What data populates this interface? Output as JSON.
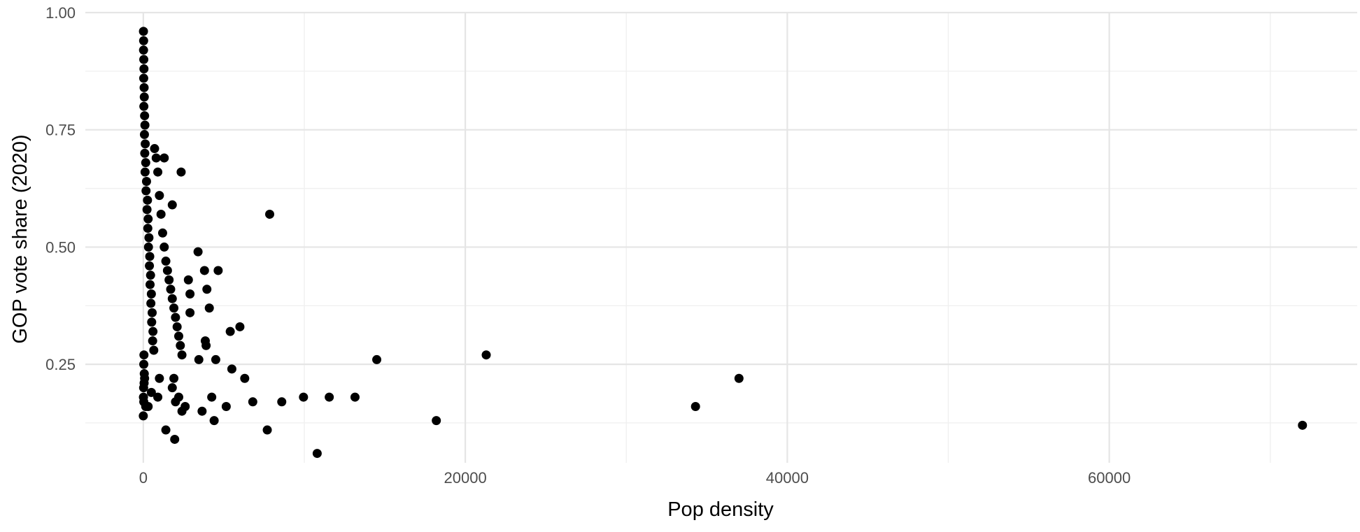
{
  "chart_data": {
    "type": "scatter",
    "title": "",
    "xlabel": "Pop density",
    "ylabel": "GOP vote share (2020)",
    "xlim": [
      -3600,
      75400
    ],
    "ylim": [
      0.04,
      1.0
    ],
    "x_ticks": [
      0,
      20000,
      40000,
      60000
    ],
    "x_tick_labels": [
      "0",
      "20000",
      "40000",
      "60000"
    ],
    "y_ticks": [
      0.25,
      0.5,
      0.75,
      1.0
    ],
    "y_tick_labels": [
      "0.25",
      "0.50",
      "0.75",
      "1.00"
    ],
    "grid": true,
    "legend": "none",
    "point_color": "#000000",
    "background": "#ffffff",
    "grid_color": "#e5e5e5",
    "points": [
      [
        10,
        0.96
      ],
      [
        20,
        0.94
      ],
      [
        15,
        0.92
      ],
      [
        30,
        0.9
      ],
      [
        40,
        0.88
      ],
      [
        25,
        0.86
      ],
      [
        50,
        0.84
      ],
      [
        60,
        0.82
      ],
      [
        35,
        0.8
      ],
      [
        80,
        0.78
      ],
      [
        100,
        0.76
      ],
      [
        70,
        0.74
      ],
      [
        120,
        0.72
      ],
      [
        90,
        0.7
      ],
      [
        150,
        0.68
      ],
      [
        110,
        0.66
      ],
      [
        200,
        0.64
      ],
      [
        170,
        0.62
      ],
      [
        260,
        0.6
      ],
      [
        230,
        0.58
      ],
      [
        300,
        0.56
      ],
      [
        280,
        0.54
      ],
      [
        350,
        0.52
      ],
      [
        320,
        0.5
      ],
      [
        400,
        0.48
      ],
      [
        380,
        0.46
      ],
      [
        450,
        0.44
      ],
      [
        420,
        0.42
      ],
      [
        500,
        0.4
      ],
      [
        470,
        0.38
      ],
      [
        550,
        0.36
      ],
      [
        520,
        0.34
      ],
      [
        600,
        0.32
      ],
      [
        580,
        0.3
      ],
      [
        650,
        0.28
      ],
      [
        40,
        0.27
      ],
      [
        30,
        0.25
      ],
      [
        60,
        0.23
      ],
      [
        80,
        0.22
      ],
      [
        50,
        0.21
      ],
      [
        20,
        0.2
      ],
      [
        10,
        0.18
      ],
      [
        30,
        0.17
      ],
      [
        0,
        0.14
      ],
      [
        150,
        0.16
      ],
      [
        700,
        0.71
      ],
      [
        800,
        0.69
      ],
      [
        900,
        0.66
      ],
      [
        1000,
        0.61
      ],
      [
        1100,
        0.57
      ],
      [
        1200,
        0.53
      ],
      [
        1300,
        0.5
      ],
      [
        1400,
        0.47
      ],
      [
        1500,
        0.45
      ],
      [
        1600,
        0.43
      ],
      [
        1700,
        0.41
      ],
      [
        1800,
        0.39
      ],
      [
        1900,
        0.37
      ],
      [
        2000,
        0.35
      ],
      [
        2100,
        0.33
      ],
      [
        2200,
        0.31
      ],
      [
        2300,
        0.29
      ],
      [
        2400,
        0.27
      ],
      [
        1300,
        0.69
      ],
      [
        2350,
        0.66
      ],
      [
        1800,
        0.59
      ],
      [
        7850,
        0.57
      ],
      [
        3400,
        0.49
      ],
      [
        2800,
        0.43
      ],
      [
        2900,
        0.4
      ],
      [
        3800,
        0.45
      ],
      [
        4650,
        0.45
      ],
      [
        3950,
        0.41
      ],
      [
        4100,
        0.37
      ],
      [
        2900,
        0.36
      ],
      [
        3850,
        0.3
      ],
      [
        3900,
        0.29
      ],
      [
        3450,
        0.26
      ],
      [
        4500,
        0.26
      ],
      [
        5400,
        0.32
      ],
      [
        6000,
        0.33
      ],
      [
        5500,
        0.24
      ],
      [
        6300,
        0.22
      ],
      [
        1900,
        0.22
      ],
      [
        1800,
        0.2
      ],
      [
        2200,
        0.18
      ],
      [
        2000,
        0.17
      ],
      [
        2600,
        0.16
      ],
      [
        2400,
        0.15
      ],
      [
        3650,
        0.15
      ],
      [
        4250,
        0.18
      ],
      [
        5150,
        0.16
      ],
      [
        6800,
        0.17
      ],
      [
        8600,
        0.17
      ],
      [
        9950,
        0.18
      ],
      [
        11550,
        0.18
      ],
      [
        13150,
        0.18
      ],
      [
        14500,
        0.26
      ],
      [
        21300,
        0.27
      ],
      [
        18200,
        0.13
      ],
      [
        4400,
        0.13
      ],
      [
        1400,
        0.11
      ],
      [
        1950,
        0.09
      ],
      [
        7700,
        0.11
      ],
      [
        10800,
        0.06
      ],
      [
        34300,
        0.16
      ],
      [
        37000,
        0.22
      ],
      [
        72000,
        0.12
      ],
      [
        500,
        0.19
      ],
      [
        300,
        0.16
      ],
      [
        900,
        0.18
      ],
      [
        1000,
        0.22
      ]
    ]
  }
}
